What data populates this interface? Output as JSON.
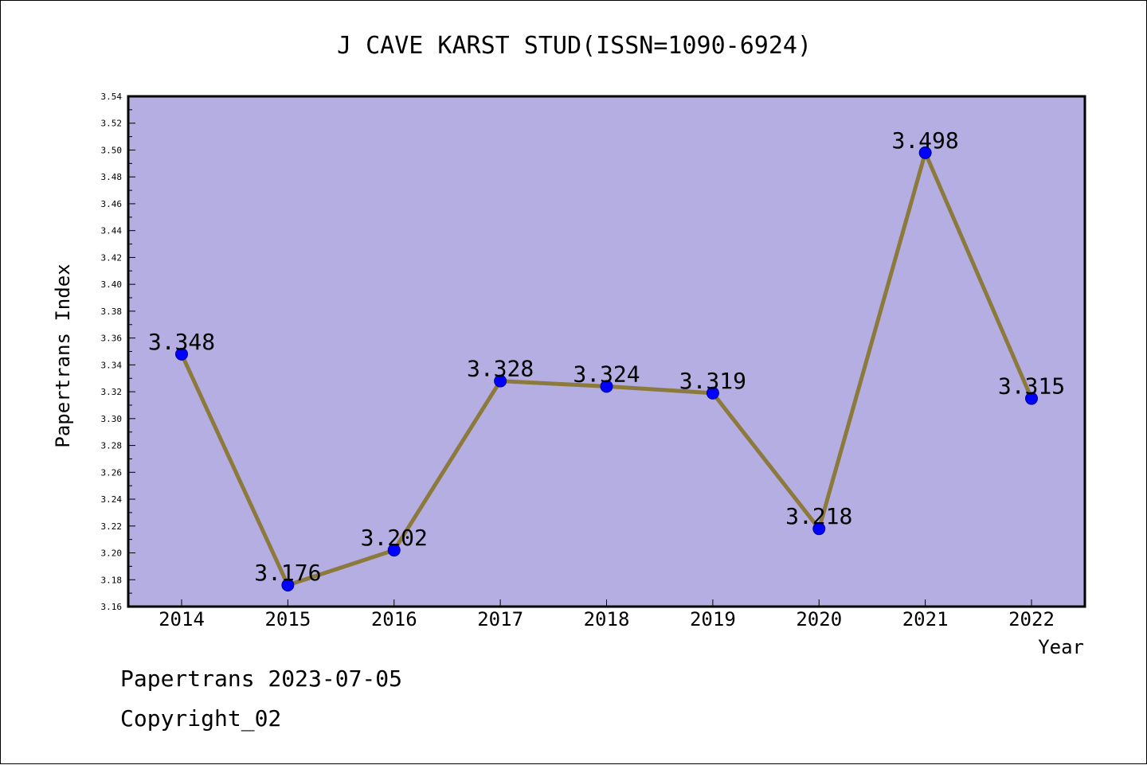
{
  "chart_data": {
    "type": "line",
    "title": "J CAVE KARST STUD(ISSN=1090-6924)",
    "xlabel": "Year",
    "ylabel": "Papertrans Index",
    "categories": [
      "2014",
      "2015",
      "2016",
      "2017",
      "2018",
      "2019",
      "2020",
      "2021",
      "2022"
    ],
    "values": [
      3.348,
      3.176,
      3.202,
      3.328,
      3.324,
      3.319,
      3.218,
      3.498,
      3.315
    ],
    "data_labels": [
      "3.348",
      "3.176",
      "3.202",
      "3.328",
      "3.324",
      "3.319",
      "3.218",
      "3.498",
      "3.315"
    ],
    "ylim": [
      3.16,
      3.54
    ],
    "yticks": [
      "3.16",
      "3.18",
      "3.20",
      "3.22",
      "3.24",
      "3.26",
      "3.28",
      "3.30",
      "3.32",
      "3.34",
      "3.36",
      "3.38",
      "3.40",
      "3.42",
      "3.44",
      "3.46",
      "3.48",
      "3.50",
      "3.52",
      "3.54"
    ],
    "grid": false,
    "legend": "none",
    "colors": {
      "plot_background": "#b5aee2",
      "line": "#8c7a3c",
      "marker": "#0000ff",
      "axis": "#000000"
    }
  },
  "footer": {
    "date_text": "Papertrans 2023-07-05",
    "copyright_text": "Copyright_02"
  }
}
